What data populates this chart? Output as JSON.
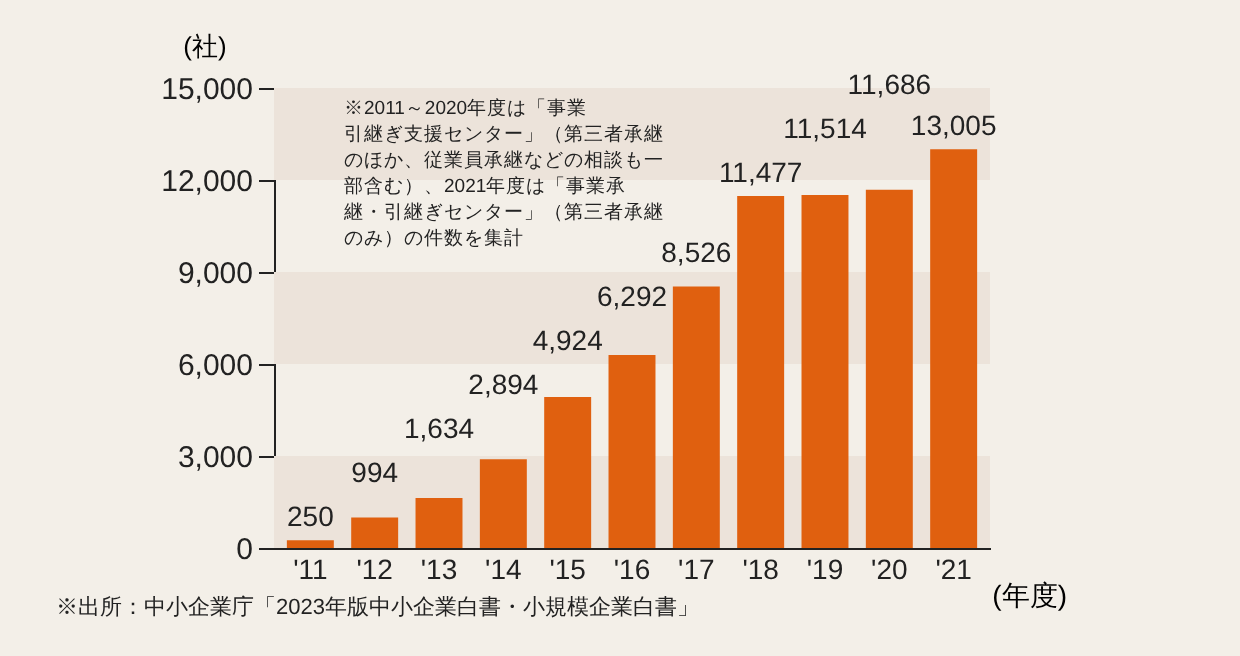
{
  "chart_data": {
    "type": "bar",
    "ylabel": "(社)",
    "xlabel": "(年度)",
    "categories": [
      "'11",
      "'12",
      "'13",
      "'14",
      "'15",
      "'16",
      "'17",
      "'18",
      "'19",
      "'20",
      "'21"
    ],
    "values": [
      250,
      994,
      1634,
      2894,
      4924,
      6292,
      8526,
      11477,
      11514,
      11686,
      13005
    ],
    "color": "#e0600f",
    "value_labels": [
      "250",
      "994",
      "1,634",
      "2,894",
      "4,924",
      "6,292",
      "8,526",
      "11,477",
      "11,514",
      "11,686",
      "13,005"
    ],
    "ylim": [
      0,
      15000
    ],
    "yticks": [
      {
        "value": 0,
        "label": "0"
      },
      {
        "value": 3000,
        "label": "3,000"
      },
      {
        "value": 6000,
        "label": "6,000"
      },
      {
        "value": 9000,
        "label": "9,000"
      },
      {
        "value": 12000,
        "label": "12,000"
      },
      {
        "value": 15000,
        "label": "15,000"
      }
    ],
    "bands": [
      {
        "axis": "y",
        "from": 0,
        "to": 3000,
        "color": "#ece3da"
      },
      {
        "axis": "y",
        "from": 6000,
        "to": 9000,
        "color": "#ece3da"
      },
      {
        "axis": "y",
        "from": 12000,
        "to": 15000,
        "color": "#ece3da"
      }
    ],
    "annotations": [
      "※2011～2020年度は「事業引継ぎ支援センター」（第三者承継のほか、従業員承継などの相談も一部含む）、2021年度は「事業承継・引継ぎセンター」（第三者承継のみ）の件数を集計",
      "※出所：中小企業庁「2023年版中小企業白書・小規模企業白書」"
    ]
  }
}
